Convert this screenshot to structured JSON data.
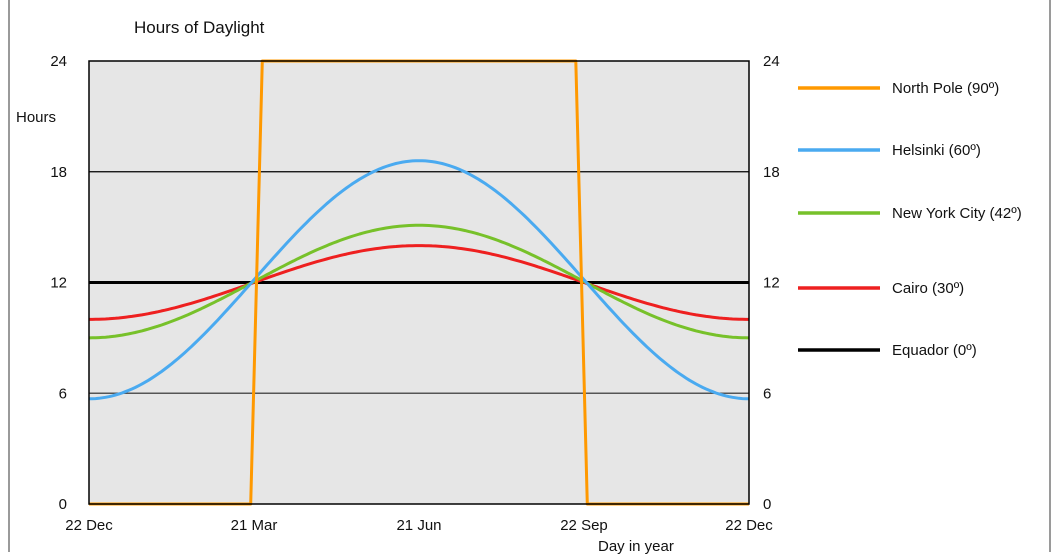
{
  "chart_data": {
    "type": "line",
    "title": "Hours of Daylight",
    "ylabel": "Hours",
    "xlabel": "Day in year",
    "ylim": [
      0,
      24
    ],
    "yticks": [
      0,
      6,
      12,
      18,
      24
    ],
    "x": [
      "22 Dec",
      "21 Mar",
      "21 Jun",
      "22 Sep",
      "22 Dec"
    ],
    "series": [
      {
        "name": "North Pole (90º)",
        "color": "#ff9900",
        "points": [
          [
            0,
            0
          ],
          [
            0.98,
            0
          ],
          [
            1.05,
            24
          ],
          [
            2.95,
            24
          ],
          [
            3.02,
            0
          ],
          [
            4,
            0
          ]
        ]
      },
      {
        "name": "Helsinki (60º)",
        "color": "#4aaaf0",
        "min": 5.7,
        "max": 18.6
      },
      {
        "name": "New York City (42º)",
        "color": "#77c12a",
        "min": 9.0,
        "max": 15.1
      },
      {
        "name": "Cairo (30º)",
        "color": "#ee2020",
        "min": 10.0,
        "max": 14.0
      },
      {
        "name": "Equador (0º)",
        "color": "#000000",
        "min": 12,
        "max": 12
      }
    ],
    "grid": true,
    "legend": "right"
  }
}
